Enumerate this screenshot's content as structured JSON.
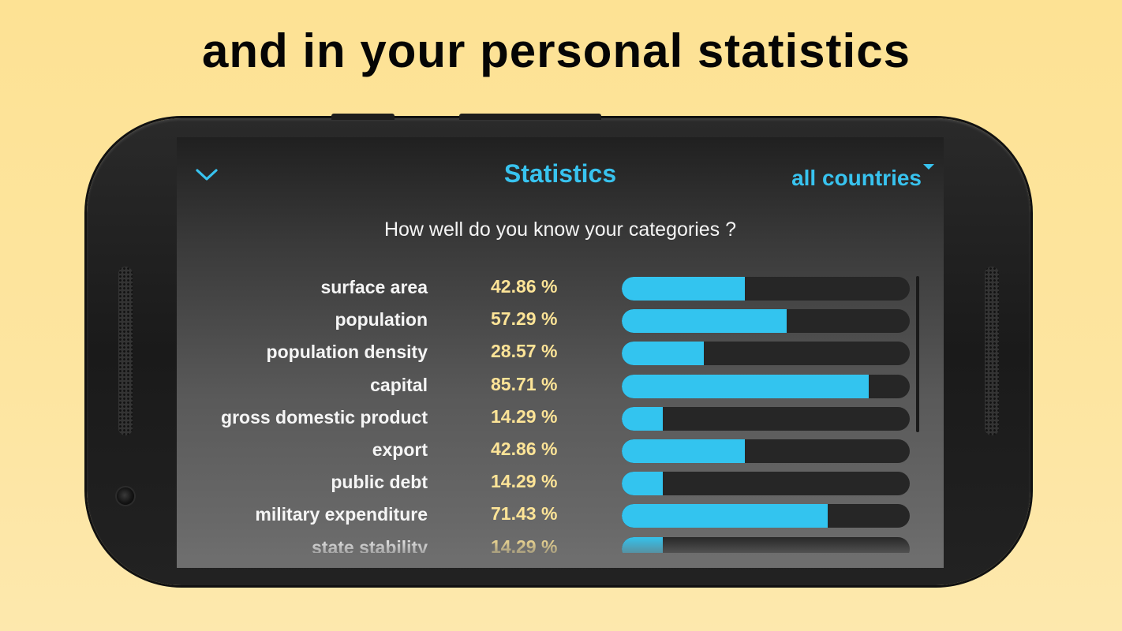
{
  "headline": "and in your personal statistics",
  "screen": {
    "title": "Statistics",
    "filter": {
      "label": "all countries"
    },
    "question": "How well do you know your categories ?",
    "icons": {
      "back": "chevron-down-icon",
      "filter_caret": "caret-down-icon"
    },
    "colors": {
      "accent": "#38c3ef",
      "percent": "#fde497",
      "bar_fill": "#33c4ef",
      "bar_track": "#262626"
    }
  },
  "stats": [
    {
      "category": "surface area",
      "percent_label": "42.86 %",
      "value": 42.86
    },
    {
      "category": "population",
      "percent_label": "57.29 %",
      "value": 57.29
    },
    {
      "category": "population density",
      "percent_label": "28.57 %",
      "value": 28.57
    },
    {
      "category": "capital",
      "percent_label": "85.71 %",
      "value": 85.71
    },
    {
      "category": "gross domestic product",
      "percent_label": "14.29 %",
      "value": 14.29
    },
    {
      "category": "export",
      "percent_label": "42.86 %",
      "value": 42.86
    },
    {
      "category": "public debt",
      "percent_label": "14.29 %",
      "value": 14.29
    },
    {
      "category": "military expenditure",
      "percent_label": "71.43 %",
      "value": 71.43
    },
    {
      "category": "state stability",
      "percent_label": "14.29 %",
      "value": 14.29
    }
  ]
}
